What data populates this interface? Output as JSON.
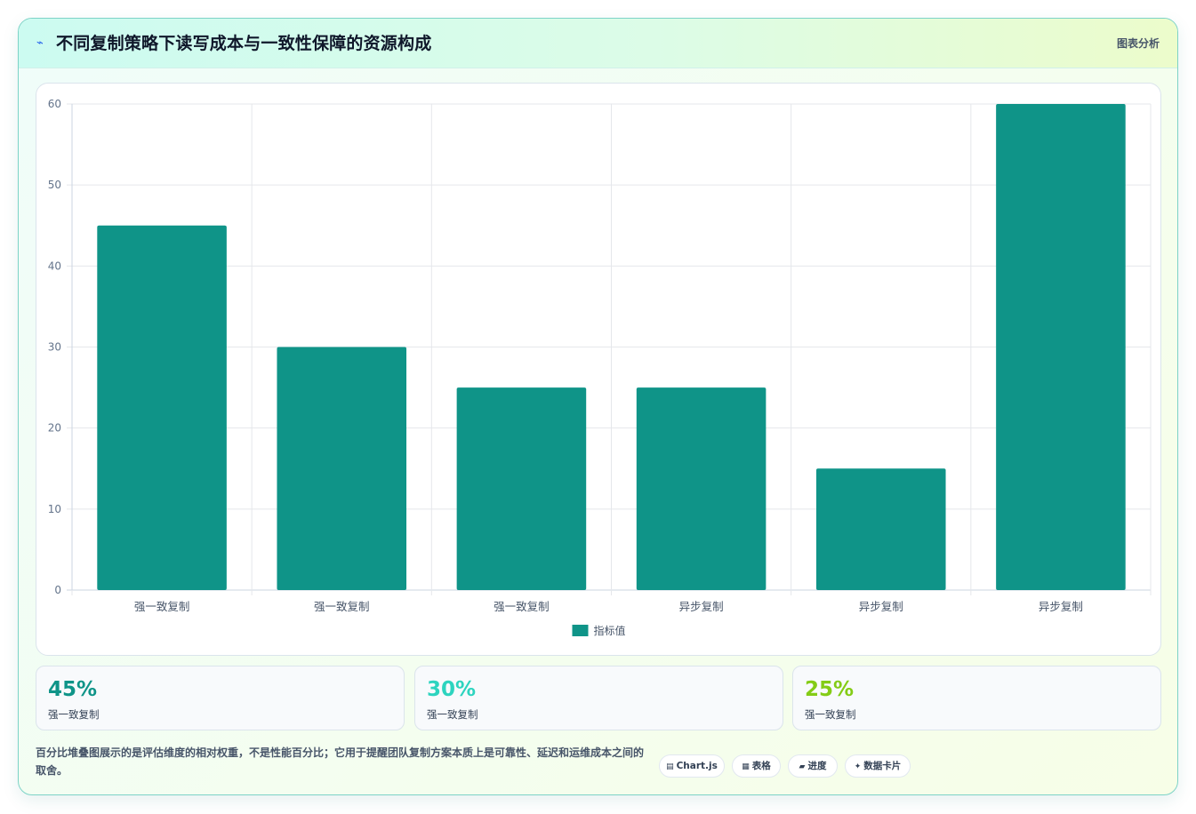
{
  "header": {
    "icon": "lightning-icon",
    "title": "不同复制策略下读写成本与一致性保障的资源构成",
    "tag": "图表分析"
  },
  "chart_data": {
    "type": "bar",
    "categories": [
      "强一致复制",
      "强一致复制",
      "强一致复制",
      "异步复制",
      "异步复制",
      "异步复制"
    ],
    "series": [
      {
        "name": "指标值",
        "values": [
          45,
          30,
          25,
          25,
          15,
          60
        ],
        "color": "#0f9488"
      }
    ],
    "ylim": [
      0,
      60
    ],
    "yticks": [
      0,
      10,
      20,
      30,
      40,
      50,
      60
    ],
    "grid": true,
    "legend": "bottom"
  },
  "kpis": [
    {
      "value": "45%",
      "label": "强一致复制",
      "color": "#0f9488"
    },
    {
      "value": "30%",
      "label": "强一致复制",
      "color": "#2dd4bf"
    },
    {
      "value": "25%",
      "label": "强一致复制",
      "color": "#84cc16"
    }
  ],
  "footer": {
    "note": "百分比堆叠图展示的是评估维度的相对权重，不是性能百分比；它用于提醒团队复制方案本质上是可靠性、延迟和运维成本之间的取舍。",
    "pills": [
      {
        "icon": "chart-icon",
        "glyph": "▤",
        "label": "Chart.js"
      },
      {
        "icon": "table-icon",
        "glyph": "▦",
        "label": "表格"
      },
      {
        "icon": "progress-icon",
        "glyph": "▰",
        "label": "进度"
      },
      {
        "icon": "sparkle-icon",
        "glyph": "✦",
        "label": "数据卡片"
      }
    ]
  }
}
